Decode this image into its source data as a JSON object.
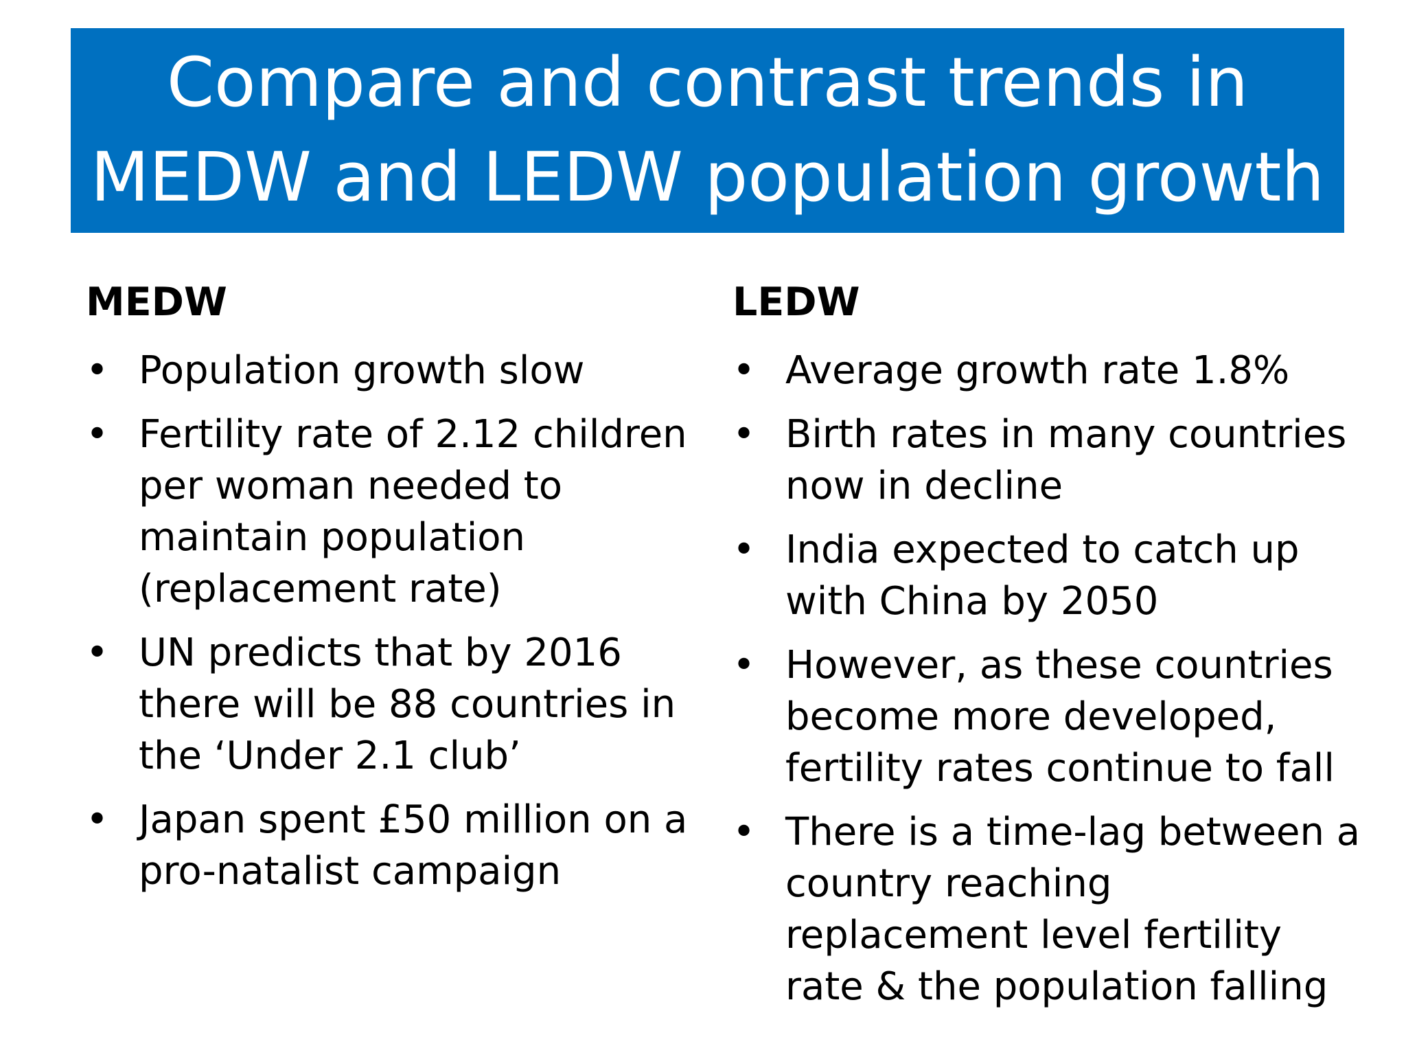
{
  "title": "Compare and contrast trends in\nMEDW and LEDW population growth",
  "colors": {
    "banner_background": "#0070c0",
    "banner_text": "#ffffff",
    "body_text": "#000000"
  },
  "left_column": {
    "heading": "MEDW",
    "bullets": [
      "Population growth slow",
      "Fertility rate of 2.12 children per woman needed to maintain population (replacement rate)",
      "UN predicts that by 2016 there will be 88 countries in the ‘Under 2.1 club’",
      "Japan spent £50 million on a pro-natalist campaign"
    ]
  },
  "right_column": {
    "heading": "LEDW",
    "bullets": [
      "Average growth rate 1.8%",
      "Birth rates in many countries now in decline",
      "India expected to catch up with China by 2050",
      "However, as these countries become more developed, fertility rates continue to fall",
      "There is a time-lag between a country reaching replacement level fertility rate & the population falling"
    ]
  },
  "bullet_glyph": "•"
}
